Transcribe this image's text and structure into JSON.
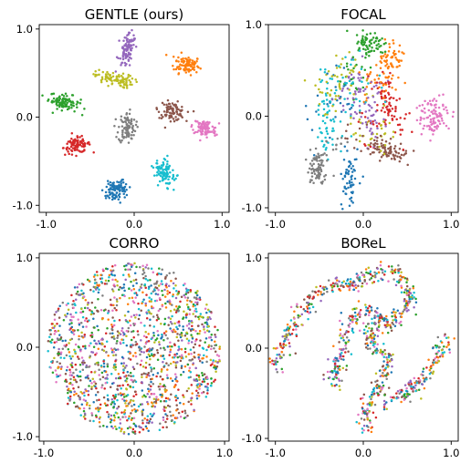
{
  "chart_data": [
    {
      "type": "scatter",
      "title": "GENTLE (ours)",
      "xlabel": "",
      "ylabel": "",
      "xlim": [
        -1.08,
        1.08
      ],
      "ylim": [
        -1.08,
        1.05
      ],
      "xticks": [
        "-1.0",
        "0.0",
        "1.0"
      ],
      "yticks": [
        "1.0",
        "0.0",
        "-1.0"
      ],
      "grid": false,
      "series": [
        {
          "color": "#1f77b4",
          "clusters": [
            {
              "cx": -0.2,
              "cy": -0.83,
              "rx": 0.13,
              "ry": 0.1,
              "angle": 25,
              "n": 95
            }
          ]
        },
        {
          "color": "#ff7f0e",
          "clusters": [
            {
              "cx": 0.6,
              "cy": 0.6,
              "rx": 0.13,
              "ry": 0.1,
              "angle": -10,
              "n": 95
            }
          ]
        },
        {
          "color": "#2ca02c",
          "clusters": [
            {
              "cx": -0.8,
              "cy": 0.17,
              "rx": 0.16,
              "ry": 0.08,
              "angle": -15,
              "n": 95
            }
          ]
        },
        {
          "color": "#d62728",
          "clusters": [
            {
              "cx": -0.65,
              "cy": -0.32,
              "rx": 0.14,
              "ry": 0.08,
              "angle": 10,
              "n": 95
            }
          ]
        },
        {
          "color": "#9467bd",
          "clusters": [
            {
              "cx": -0.08,
              "cy": 0.75,
              "rx": 0.07,
              "ry": 0.18,
              "angle": -10,
              "n": 95
            }
          ]
        },
        {
          "color": "#8c564b",
          "clusters": [
            {
              "cx": 0.43,
              "cy": 0.07,
              "rx": 0.14,
              "ry": 0.09,
              "angle": -10,
              "n": 95
            }
          ]
        },
        {
          "color": "#e377c2",
          "clusters": [
            {
              "cx": 0.8,
              "cy": -0.13,
              "rx": 0.13,
              "ry": 0.09,
              "angle": -15,
              "n": 95
            }
          ]
        },
        {
          "color": "#7f7f7f",
          "clusters": [
            {
              "cx": -0.08,
              "cy": -0.12,
              "rx": 0.09,
              "ry": 0.16,
              "angle": 0,
              "n": 95
            }
          ]
        },
        {
          "color": "#bcbd22",
          "clusters": [
            {
              "cx": -0.23,
              "cy": 0.43,
              "rx": 0.2,
              "ry": 0.07,
              "angle": -10,
              "n": 95
            }
          ]
        },
        {
          "color": "#17becf",
          "clusters": [
            {
              "cx": 0.35,
              "cy": -0.63,
              "rx": 0.1,
              "ry": 0.15,
              "angle": 20,
              "n": 95
            }
          ]
        }
      ]
    },
    {
      "type": "scatter",
      "title": "FOCAL",
      "xlabel": "",
      "ylabel": "",
      "xlim": [
        -1.08,
        1.08
      ],
      "ylim": [
        -1.05,
        1.0
      ],
      "xticks": [
        "-1.0",
        "0.0",
        "1.0"
      ],
      "yticks": [
        "1.0",
        "0.0",
        "-1.0"
      ],
      "grid": false,
      "series": [
        {
          "color": "#1f77b4",
          "clusters": [
            {
              "cx": -0.15,
              "cy": -0.65,
              "rx": 0.08,
              "ry": 0.28,
              "angle": 0,
              "n": 60
            },
            {
              "cx": -0.3,
              "cy": 0.1,
              "rx": 0.25,
              "ry": 0.4,
              "angle": 0,
              "n": 30
            }
          ]
        },
        {
          "color": "#ff7f0e",
          "clusters": [
            {
              "cx": 0.3,
              "cy": 0.6,
              "rx": 0.12,
              "ry": 0.22,
              "angle": -10,
              "n": 70
            },
            {
              "cx": 0.1,
              "cy": 0.3,
              "rx": 0.2,
              "ry": 0.2,
              "angle": 0,
              "n": 20
            }
          ]
        },
        {
          "color": "#2ca02c",
          "clusters": [
            {
              "cx": 0.08,
              "cy": 0.78,
              "rx": 0.17,
              "ry": 0.12,
              "angle": -15,
              "n": 70
            },
            {
              "cx": -0.1,
              "cy": 0.4,
              "rx": 0.2,
              "ry": 0.3,
              "angle": 0,
              "n": 20
            }
          ]
        },
        {
          "color": "#d62728",
          "clusters": [
            {
              "cx": 0.28,
              "cy": 0.1,
              "rx": 0.13,
              "ry": 0.3,
              "angle": 25,
              "n": 75
            },
            {
              "cx": 0.1,
              "cy": -0.1,
              "rx": 0.2,
              "ry": 0.2,
              "angle": 0,
              "n": 15
            }
          ]
        },
        {
          "color": "#9467bd",
          "clusters": [
            {
              "cx": 0.1,
              "cy": 0.05,
              "rx": 0.15,
              "ry": 0.35,
              "angle": 0,
              "n": 45
            },
            {
              "cx": -0.15,
              "cy": 0.3,
              "rx": 0.2,
              "ry": 0.3,
              "angle": 0,
              "n": 35
            }
          ]
        },
        {
          "color": "#8c564b",
          "clusters": [
            {
              "cx": 0.28,
              "cy": -0.38,
              "rx": 0.2,
              "ry": 0.09,
              "angle": -20,
              "n": 75
            },
            {
              "cx": 0.0,
              "cy": -0.2,
              "rx": 0.2,
              "ry": 0.2,
              "angle": 0,
              "n": 15
            }
          ]
        },
        {
          "color": "#e377c2",
          "clusters": [
            {
              "cx": 0.8,
              "cy": 0.0,
              "rx": 0.15,
              "ry": 0.18,
              "angle": -20,
              "n": 95
            }
          ]
        },
        {
          "color": "#7f7f7f",
          "clusters": [
            {
              "cx": -0.52,
              "cy": -0.55,
              "rx": 0.13,
              "ry": 0.2,
              "angle": 0,
              "n": 85
            },
            {
              "cx": -0.3,
              "cy": -0.3,
              "rx": 0.15,
              "ry": 0.15,
              "angle": 0,
              "n": 10
            }
          ]
        },
        {
          "color": "#bcbd22",
          "clusters": [
            {
              "cx": -0.3,
              "cy": 0.35,
              "rx": 0.25,
              "ry": 0.35,
              "angle": 0,
              "n": 55
            },
            {
              "cx": 0.15,
              "cy": -0.2,
              "rx": 0.2,
              "ry": 0.25,
              "angle": 0,
              "n": 30
            }
          ]
        },
        {
          "color": "#17becf",
          "clusters": [
            {
              "cx": -0.42,
              "cy": 0.05,
              "rx": 0.12,
              "ry": 0.45,
              "angle": 0,
              "n": 55
            },
            {
              "cx": -0.15,
              "cy": 0.2,
              "rx": 0.25,
              "ry": 0.4,
              "angle": 0,
              "n": 35
            }
          ]
        }
      ]
    },
    {
      "type": "scatter",
      "title": "CORRO",
      "xlabel": "",
      "ylabel": "",
      "xlim": [
        -1.05,
        1.05
      ],
      "ylim": [
        -1.05,
        1.05
      ],
      "xticks": [
        "-1.0",
        "0.0",
        "1.0"
      ],
      "yticks": [
        "1.0",
        "0.0",
        "-1.0"
      ],
      "grid": false,
      "layout": "disc",
      "series": [
        {
          "color": "#1f77b4",
          "n": 150
        },
        {
          "color": "#ff7f0e",
          "n": 150
        },
        {
          "color": "#2ca02c",
          "n": 150
        },
        {
          "color": "#d62728",
          "n": 150
        },
        {
          "color": "#9467bd",
          "n": 150
        },
        {
          "color": "#8c564b",
          "n": 150
        },
        {
          "color": "#e377c2",
          "n": 150
        },
        {
          "color": "#7f7f7f",
          "n": 150
        },
        {
          "color": "#bcbd22",
          "n": 150
        },
        {
          "color": "#17becf",
          "n": 150
        }
      ]
    },
    {
      "type": "scatter",
      "title": "BOReL",
      "xlabel": "",
      "ylabel": "",
      "xlim": [
        -1.08,
        1.08
      ],
      "ylim": [
        -1.03,
        1.05
      ],
      "xticks": [
        "-1.0",
        "0.0",
        "1.0"
      ],
      "yticks": [
        "1.0",
        "0.0",
        "-1.0"
      ],
      "grid": false,
      "layout": "bands",
      "bands": [
        [
          [
            -1.0,
            -0.2
          ],
          [
            -0.85,
            0.15
          ],
          [
            -0.6,
            0.55
          ],
          [
            -0.35,
            0.72
          ],
          [
            -0.15,
            0.68
          ],
          [
            0.05,
            0.8
          ],
          [
            0.25,
            0.88
          ],
          [
            0.45,
            0.78
          ],
          [
            0.55,
            0.55
          ],
          [
            0.4,
            0.35
          ],
          [
            0.15,
            0.3
          ],
          [
            0.05,
            0.15
          ],
          [
            0.15,
            0.0
          ],
          [
            0.3,
            -0.1
          ],
          [
            0.2,
            -0.35
          ],
          [
            0.05,
            -0.62
          ],
          [
            0.0,
            -0.9
          ]
        ],
        [
          [
            -0.3,
            -0.45
          ],
          [
            -0.3,
            -0.2
          ],
          [
            -0.2,
            0.1
          ],
          [
            -0.15,
            0.35
          ],
          [
            0.05,
            0.45
          ],
          [
            0.2,
            0.3
          ],
          [
            0.35,
            0.25
          ]
        ],
        [
          [
            0.2,
            -0.6
          ],
          [
            0.5,
            -0.5
          ],
          [
            0.75,
            -0.25
          ],
          [
            0.95,
            0.1
          ]
        ]
      ],
      "series": [
        {
          "color": "#1f77b4",
          "n": 90
        },
        {
          "color": "#ff7f0e",
          "n": 90
        },
        {
          "color": "#2ca02c",
          "n": 90
        },
        {
          "color": "#d62728",
          "n": 90
        },
        {
          "color": "#9467bd",
          "n": 90
        },
        {
          "color": "#8c564b",
          "n": 90
        },
        {
          "color": "#e377c2",
          "n": 90
        },
        {
          "color": "#7f7f7f",
          "n": 90
        },
        {
          "color": "#bcbd22",
          "n": 90
        },
        {
          "color": "#17becf",
          "n": 90
        }
      ]
    }
  ]
}
